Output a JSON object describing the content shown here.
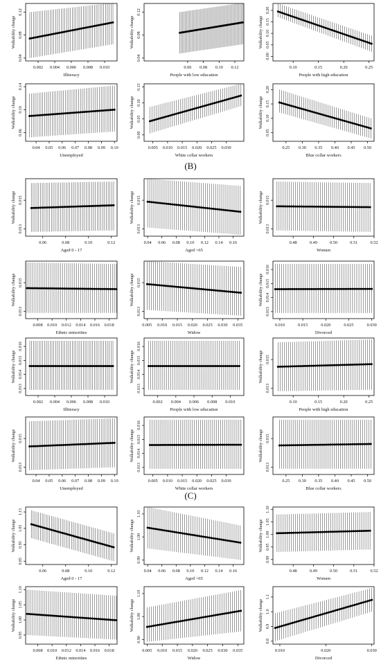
{
  "panel_labels": [
    "(B)",
    "(C)"
  ],
  "chart_data": [
    {
      "type": "line",
      "group": "A",
      "xlabel": "Illiteracy",
      "ylabel": "Walkability change",
      "xlim": [
        0.0005,
        0.0115
      ],
      "ylim": [
        0.035,
        0.135
      ],
      "xticks": [
        "0.002",
        "0.004",
        "0.006",
        "0.008",
        "0.010"
      ],
      "yticks": [
        "0.04",
        "0.08",
        "0.12"
      ],
      "x": [
        0.001,
        0.011
      ],
      "y": [
        0.074,
        0.102
      ],
      "lo": [
        0.04,
        0.064
      ],
      "hi": [
        0.12,
        0.136
      ]
    },
    {
      "type": "line",
      "group": "A",
      "xlabel": "People with low education",
      "ylabel": "Walkability change",
      "xlim": [
        0.0045,
        0.1315
      ],
      "ylim": [
        0.035,
        0.135
      ],
      "xticks": [
        "0.06",
        "0.08",
        "0.10",
        "0.12"
      ],
      "yticks": [
        "0.04",
        "0.08",
        "0.12"
      ],
      "x": [
        0.05,
        0.13
      ],
      "y": [
        0.084,
        0.102
      ],
      "lo": [
        0.048,
        0.064
      ],
      "hi": [
        0.12,
        0.136
      ]
    },
    {
      "type": "line",
      "group": "A",
      "xlabel": "People with high education",
      "ylabel": "Walkability change",
      "xlim": [
        0.06,
        0.26
      ],
      "ylim": [
        -0.02,
        0.23
      ],
      "xticks": [
        "0.10",
        "0.15",
        "0.20",
        "0.25"
      ],
      "yticks": [
        "0.00",
        "0.05",
        "0.10",
        "0.15",
        "0.20"
      ],
      "x": [
        0.07,
        0.255
      ],
      "y": [
        0.195,
        0.055
      ],
      "lo": [
        0.17,
        0.02
      ],
      "hi": [
        0.23,
        0.09
      ]
    },
    {
      "type": "line",
      "group": "A",
      "xlabel": "Unemployed",
      "ylabel": "Walkability change",
      "xlim": [
        0.032,
        0.102
      ],
      "ylim": [
        0.045,
        0.145
      ],
      "xticks": [
        "0.04",
        "0.05",
        "0.06",
        "0.07",
        "0.08",
        "0.09",
        "0.10"
      ],
      "yticks": [
        "0.06",
        "0.10",
        "0.14"
      ],
      "x": [
        0.035,
        0.1
      ],
      "y": [
        0.089,
        0.1
      ],
      "lo": [
        0.052,
        0.062
      ],
      "hi": [
        0.128,
        0.142
      ]
    },
    {
      "type": "line",
      "group": "A",
      "xlabel": "White collar workers",
      "ylabel": "Walkability change",
      "xlim": [
        0.002,
        0.036
      ],
      "ylim": [
        -0.02,
        0.16
      ],
      "xticks": [
        "0.005",
        "0.010",
        "0.015",
        "0.020",
        "0.025",
        "0.030"
      ],
      "yticks": [
        "0.00",
        "0.05",
        "0.10",
        "0.15"
      ],
      "x": [
        0.004,
        0.035
      ],
      "y": [
        0.043,
        0.123
      ],
      "lo": [
        0.005,
        0.09
      ],
      "hi": [
        0.088,
        0.16
      ]
    },
    {
      "type": "line",
      "group": "A",
      "xlabel": "Blue collar workers",
      "ylabel": "Walkability change",
      "xlim": [
        0.21,
        0.52
      ],
      "ylim": [
        0.02,
        0.22
      ],
      "xticks": [
        "0.25",
        "0.30",
        "0.35",
        "0.40",
        "0.45",
        "0.50"
      ],
      "yticks": [
        "0.05",
        "0.10",
        "0.15",
        "0.20"
      ],
      "x": [
        0.23,
        0.51
      ],
      "y": [
        0.155,
        0.065
      ],
      "lo": [
        0.12,
        0.03
      ],
      "hi": [
        0.2,
        0.1
      ]
    },
    {
      "type": "line",
      "group": "B",
      "xlabel": "Aged 0 - 17",
      "ylabel": "Walkability change",
      "xlim": [
        0.045,
        0.125
      ],
      "ylim": [
        0.0125,
        0.0165
      ],
      "xticks": [
        "0.06",
        "0.08",
        "0.10",
        "0.12"
      ],
      "yticks": [
        "0.013",
        "0.015"
      ],
      "x": [
        0.05,
        0.122
      ],
      "y": [
        0.01446,
        0.01465
      ],
      "lo": [
        0.0128,
        0.0129
      ],
      "hi": [
        0.0162,
        0.0163
      ]
    },
    {
      "type": "line",
      "group": "B",
      "xlabel": "Aged >65",
      "ylabel": "Walkability change",
      "xlim": [
        0.035,
        0.175
      ],
      "ylim": [
        0.0125,
        0.0165
      ],
      "xticks": [
        "0.04",
        "0.06",
        "0.08",
        "0.10",
        "0.12",
        "0.14",
        "0.16"
      ],
      "yticks": [
        "0.013",
        "0.015"
      ],
      "x": [
        0.04,
        0.17
      ],
      "y": [
        0.0149,
        0.0142
      ],
      "lo": [
        0.0131,
        0.0126
      ],
      "hi": [
        0.0165,
        0.016
      ]
    },
    {
      "type": "line",
      "group": "B",
      "xlabel": "Women",
      "ylabel": "Walkability change",
      "xlim": [
        0.47,
        0.52
      ],
      "ylim": [
        0.0125,
        0.0165
      ],
      "xticks": [
        "0.48",
        "0.49",
        "0.50",
        "0.51",
        "0.52"
      ],
      "yticks": [
        "0.013",
        "0.015"
      ],
      "x": [
        0.472,
        0.518
      ],
      "y": [
        0.01458,
        0.01452
      ],
      "lo": [
        0.0129,
        0.0128
      ],
      "hi": [
        0.0163,
        0.0162
      ]
    },
    {
      "type": "line",
      "group": "B",
      "xlabel": "Ethnic minorities",
      "ylabel": "Walkability change",
      "xlim": [
        0.0063,
        0.0191
      ],
      "ylim": [
        0.0125,
        0.0165
      ],
      "xticks": [
        "0.008",
        "0.010",
        "0.012",
        "0.014",
        "0.016",
        "0.018"
      ],
      "yticks": [
        "0.013",
        "0.015"
      ],
      "x": [
        0.0065,
        0.019
      ],
      "y": [
        0.01462,
        0.01455
      ],
      "lo": [
        0.0129,
        0.0129
      ],
      "hi": [
        0.0164,
        0.0163
      ]
    },
    {
      "type": "line",
      "group": "B",
      "xlabel": "Widow",
      "ylabel": "Walkability change",
      "xlim": [
        0.004,
        0.037
      ],
      "ylim": [
        0.0125,
        0.0165
      ],
      "xticks": [
        "0.005",
        "0.010",
        "0.015",
        "0.020",
        "0.025",
        "0.030",
        "0.035"
      ],
      "yticks": [
        "0.013",
        "0.015"
      ],
      "x": [
        0.005,
        0.036
      ],
      "y": [
        0.0149,
        0.0143
      ],
      "lo": [
        0.0131,
        0.0127
      ],
      "hi": [
        0.0165,
        0.0161
      ]
    },
    {
      "type": "line",
      "group": "B",
      "xlabel": "Divorced",
      "ylabel": "Walkability change",
      "xlim": [
        0.0085,
        0.0305
      ],
      "ylim": [
        0.0125,
        0.0166
      ],
      "xticks": [
        "0.010",
        "0.015",
        "0.020",
        "0.025",
        "0.030"
      ],
      "yticks": [
        "0.013",
        "0.014",
        "0.015",
        "0.016"
      ],
      "x": [
        0.009,
        0.03
      ],
      "y": [
        0.0146,
        0.01462
      ],
      "lo": [
        0.0129,
        0.0129
      ],
      "hi": [
        0.0164,
        0.0164
      ]
    },
    {
      "type": "line",
      "group": "B",
      "xlabel": "Illiteracy",
      "ylabel": "Walkability change",
      "xlim": [
        0.0005,
        0.0115
      ],
      "ylim": [
        0.0125,
        0.0166
      ],
      "xticks": [
        "0.002",
        "0.004",
        "0.006",
        "0.008",
        "0.010"
      ],
      "yticks": [
        "0.013",
        "0.014",
        "0.015",
        "0.016"
      ],
      "x": [
        0.001,
        0.011
      ],
      "y": [
        0.0146,
        0.0146
      ],
      "lo": [
        0.0129,
        0.0129
      ],
      "hi": [
        0.0164,
        0.0164
      ]
    },
    {
      "type": "line",
      "group": "B",
      "xlabel": "People with low education",
      "ylabel": "Walkability change",
      "xlim": [
        0.0005,
        0.0115
      ],
      "ylim": [
        0.0125,
        0.0166
      ],
      "xticks": [
        "0.002",
        "0.004",
        "0.006",
        "0.008",
        "0.010"
      ],
      "yticks": [
        "0.013",
        "0.014",
        "0.015",
        "0.016"
      ],
      "x": [
        0.001,
        0.011
      ],
      "y": [
        0.0146,
        0.0146
      ],
      "lo": [
        0.0129,
        0.0129
      ],
      "hi": [
        0.0164,
        0.0164
      ]
    },
    {
      "type": "line",
      "group": "B",
      "xlabel": "People with high education",
      "ylabel": "Walkability change",
      "xlim": [
        0.06,
        0.26
      ],
      "ylim": [
        0.0125,
        0.0165
      ],
      "xticks": [
        "0.10",
        "0.15",
        "0.20",
        "0.25"
      ],
      "yticks": [
        "0.013",
        "0.015"
      ],
      "x": [
        0.07,
        0.255
      ],
      "y": [
        0.0145,
        0.01468
      ],
      "lo": [
        0.0128,
        0.0129
      ],
      "hi": [
        0.0162,
        0.0164
      ]
    },
    {
      "type": "line",
      "group": "B",
      "xlabel": "Unemployed",
      "ylabel": "Walkability change",
      "xlim": [
        0.032,
        0.102
      ],
      "ylim": [
        0.0125,
        0.0165
      ],
      "xticks": [
        "0.04",
        "0.05",
        "0.06",
        "0.07",
        "0.08",
        "0.09",
        "0.10"
      ],
      "yticks": [
        "0.013",
        "0.015"
      ],
      "x": [
        0.035,
        0.1
      ],
      "y": [
        0.01445,
        0.0147
      ],
      "lo": [
        0.0128,
        0.013
      ],
      "hi": [
        0.0162,
        0.0164
      ]
    },
    {
      "type": "line",
      "group": "B",
      "xlabel": "White collar workers",
      "ylabel": "Walkability change",
      "xlim": [
        0.002,
        0.036
      ],
      "ylim": [
        0.0125,
        0.0166
      ],
      "xticks": [
        "0.005",
        "0.010",
        "0.015",
        "0.020",
        "0.025",
        "0.030"
      ],
      "yticks": [
        "0.013",
        "0.014",
        "0.015",
        "0.016"
      ],
      "x": [
        0.004,
        0.035
      ],
      "y": [
        0.0146,
        0.01462
      ],
      "lo": [
        0.0129,
        0.0129
      ],
      "hi": [
        0.0164,
        0.0164
      ]
    },
    {
      "type": "line",
      "group": "B",
      "xlabel": "Blue collar workers",
      "ylabel": "Walkability change",
      "xlim": [
        0.21,
        0.52
      ],
      "ylim": [
        0.0125,
        0.0165
      ],
      "xticks": [
        "0.25",
        "0.30",
        "0.35",
        "0.40",
        "0.45",
        "0.50"
      ],
      "yticks": [
        "0.013",
        "0.015"
      ],
      "x": [
        0.23,
        0.51
      ],
      "y": [
        0.01452,
        0.01462
      ],
      "lo": [
        0.0129,
        0.0129
      ],
      "hi": [
        0.0163,
        0.0163
      ]
    },
    {
      "type": "line",
      "group": "C",
      "xlabel": "Aged 0 - 17",
      "ylabel": "Walkability change",
      "xlim": [
        0.045,
        0.125
      ],
      "ylim": [
        0.83,
        1.18
      ],
      "xticks": [
        "0.06",
        "0.08",
        "0.10",
        "0.12"
      ],
      "yticks": [
        "0.85",
        "0.95",
        "1.05",
        "1.15"
      ],
      "x": [
        0.05,
        0.122
      ],
      "y": [
        1.075,
        0.935
      ],
      "lo": [
        0.99,
        0.85
      ],
      "hi": [
        1.16,
        1.02
      ]
    },
    {
      "type": "line",
      "group": "C",
      "xlabel": "Aged >65",
      "ylabel": "Walkability change",
      "xlim": [
        0.035,
        0.175
      ],
      "ylim": [
        0.88,
        1.13
      ],
      "xticks": [
        "0.04",
        "0.06",
        "0.08",
        "0.10",
        "0.12",
        "0.14",
        "0.16"
      ],
      "yticks": [
        "0.90",
        "1.00",
        "1.10"
      ],
      "x": [
        0.04,
        0.17
      ],
      "y": [
        1.04,
        0.975
      ],
      "lo": [
        0.95,
        0.9
      ],
      "hi": [
        1.13,
        1.05
      ]
    },
    {
      "type": "line",
      "group": "C",
      "xlabel": "Women",
      "ylabel": "Walkability change",
      "xlim": [
        0.47,
        0.52
      ],
      "ylim": [
        0.88,
        1.11
      ],
      "xticks": [
        "0.48",
        "0.49",
        "0.50",
        "0.51",
        "0.52"
      ],
      "yticks": [
        "0.90",
        "0.95",
        "1.00",
        "1.05",
        "1.10"
      ],
      "x": [
        0.472,
        0.518
      ],
      "y": [
        1.005,
        1.015
      ],
      "lo": [
        0.93,
        0.94
      ],
      "hi": [
        1.08,
        1.09
      ]
    },
    {
      "type": "line",
      "group": "C",
      "xlabel": "Ethnic minorities",
      "ylabel": "Walkability change",
      "xlim": [
        0.0063,
        0.0191
      ],
      "ylim": [
        0.92,
        1.11
      ],
      "xticks": [
        "0.008",
        "0.010",
        "0.012",
        "0.014",
        "0.016",
        "0.018"
      ],
      "yticks": [
        "0.95",
        "1.00",
        "1.05",
        "1.10"
      ],
      "x": [
        0.0065,
        0.019
      ],
      "y": [
        1.02,
        0.999
      ],
      "lo": [
        0.95,
        0.935
      ],
      "hi": [
        1.1,
        1.08
      ]
    },
    {
      "type": "line",
      "group": "C",
      "xlabel": "Widow",
      "ylabel": "Walkability change",
      "xlim": [
        0.004,
        0.037
      ],
      "ylim": [
        0.88,
        1.13
      ],
      "xticks": [
        "0.005",
        "0.010",
        "0.015",
        "0.020",
        "0.025",
        "0.030",
        "0.035"
      ],
      "yticks": [
        "0.90",
        "1.00",
        "1.10"
      ],
      "x": [
        0.005,
        0.036
      ],
      "y": [
        0.955,
        1.025
      ],
      "lo": [
        0.89,
        0.935
      ],
      "hi": [
        1.04,
        1.115
      ]
    },
    {
      "type": "line",
      "group": "C",
      "xlabel": "Divorced",
      "ylabel": "Walkability change",
      "xlim": [
        0.0085,
        0.0305
      ],
      "ylim": [
        0.78,
        1.17
      ],
      "xticks": [
        "0.010",
        "0.020",
        "0.030"
      ],
      "yticks": [
        "0.8",
        "0.9",
        "1.0",
        "1.1"
      ],
      "x": [
        0.009,
        0.03
      ],
      "y": [
        0.89,
        1.08
      ],
      "lo": [
        0.8,
        1.0
      ],
      "hi": [
        0.99,
        1.16
      ]
    }
  ]
}
